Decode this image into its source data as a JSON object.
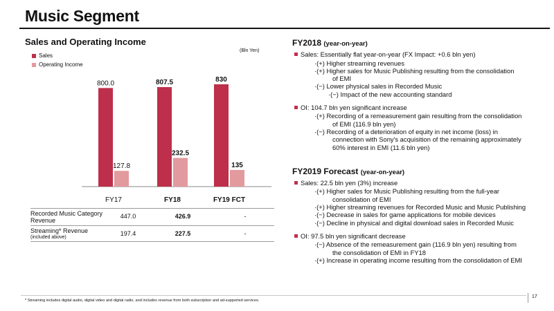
{
  "page": {
    "title": "Music Segment",
    "page_number": "17",
    "footnote": "* Streaming includes digital audio, digital video and digital radio, and includes revenue from both subscription and ad-supported services."
  },
  "chart_data": {
    "type": "bar",
    "title": "Sales and Operating Income",
    "unit_note": "(Bln Yen)",
    "categories": [
      "FY17",
      "FY18",
      "FY19 FCT"
    ],
    "series": [
      {
        "name": "Sales",
        "values": [
          800.0,
          807.5,
          830
        ],
        "labels": [
          "800.0",
          "807.5",
          "830"
        ],
        "color": "#bd2f4b"
      },
      {
        "name": "Operating Income",
        "values": [
          127.8,
          232.5,
          135
        ],
        "labels": [
          "127.8",
          "232.5",
          "135"
        ],
        "color": "#e29a9e"
      }
    ],
    "bold_categories": [
      "FY18",
      "FY19 FCT"
    ],
    "ylim": [
      0,
      830
    ],
    "grid": false,
    "legend": "top-left"
  },
  "table": {
    "rows": [
      {
        "label": "Recorded Music Category Revenue",
        "sublabel": "",
        "values": [
          "447.0",
          "426.9",
          "-"
        ]
      },
      {
        "label": "Streaming* Revenue",
        "sublabel": "(included above)",
        "values": [
          "197.4",
          "227.5",
          "-"
        ]
      }
    ]
  },
  "fy2018": {
    "title": "FY2018",
    "title_suffix": "(year-on-year)",
    "sales_bullet": "Sales: Essentially flat year-on-year (FX Impact: +0.6 bln yen)",
    "sales_items": [
      "·(+) Higher streaming revenues",
      "·(+) Higher sales for Music Publishing resulting from the consolidation",
      "·(−) Lower physical sales in Recorded Music"
    ],
    "sales_item_cont": "of EMI",
    "sales_subitem": "·(−) Impact of the new accounting standard",
    "oi_bullet": "OI: 104.7 bln yen significant increase",
    "oi_item1": "·(+) Recording of a remeasurement gain resulting from the consolidation",
    "oi_item1_cont": "of EMI (116.9 bln yen)",
    "oi_item2": "·(−) Recording of a deterioration of equity in net income (loss) in",
    "oi_item2_cont1": "connection with Sony's acquisition of the remaining approximately",
    "oi_item2_cont2": "60% interest in EMI (11.6 bln yen)"
  },
  "fy2019": {
    "title": "FY2019 Forecast",
    "title_suffix": "(year-on-year)",
    "sales_bullet": "Sales: 22.5 bln yen (3%) increase",
    "sales_item1": "·(+) Higher sales for Music Publishing resulting from the full-year",
    "sales_item1_cont": "consolidation of EMI",
    "sales_item2": "·(+) Higher streaming revenues for Recorded Music and Music Publishing",
    "sales_item3": "·(−) Decrease in sales for game applications for mobile devices",
    "sales_item4": "·(−) Decline in physical and digital download sales in Recorded Music",
    "oi_bullet": "OI: 97.5 bln yen significant decrease",
    "oi_item1": "·(−) Absence of the remeasurement gain (116.9 bln yen) resulting from",
    "oi_item1_cont": "the consolidation of EMI in FY18",
    "oi_item2": "·(+) Increase in operating income resulting from the consolidation of EMI"
  }
}
